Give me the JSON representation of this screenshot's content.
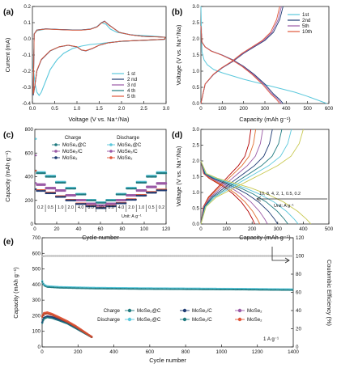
{
  "colors": {
    "c1": "#5bc8dc",
    "c2": "#1f3b73",
    "c3": "#9b5aa6",
    "c4": "#1f7a7f",
    "c5": "#e0573a"
  },
  "chart_data": [
    {
      "id": "a",
      "panel_label": "(a)",
      "type": "line",
      "xlabel": "Voltage (V vs. Na⁺/Na)",
      "ylabel": "Current (mA)",
      "xlim": [
        0,
        3.0
      ],
      "ylim": [
        -0.4,
        0.2
      ],
      "xticks": [
        "0.0",
        "0.5",
        "1.0",
        "1.5",
        "2.0",
        "2.5",
        "3.0"
      ],
      "yticks": [
        "-0.4",
        "-0.3",
        "-0.2",
        "-0.1",
        "0.0",
        "0.1",
        "0.2"
      ],
      "legend": [
        "1 st",
        "2 nd",
        "3 rd",
        "4 th",
        "5 th"
      ],
      "series": [
        {
          "name": "1 st",
          "x": [
            0.02,
            0.06,
            0.1,
            0.15,
            0.2,
            0.3,
            0.4,
            0.55,
            0.7,
            0.9,
            1.1,
            1.3,
            1.5,
            1.8,
            2.2,
            2.6,
            2.95,
            2.98,
            2.8,
            2.5,
            2.2,
            1.9,
            1.75,
            1.65,
            1.55,
            1.45,
            1.3,
            1.1,
            0.9,
            0.6,
            0.3,
            0.1,
            0.04,
            0.02
          ],
          "y": [
            -0.18,
            -0.28,
            -0.33,
            -0.35,
            -0.33,
            -0.26,
            -0.19,
            -0.13,
            -0.09,
            -0.06,
            -0.045,
            -0.035,
            -0.03,
            -0.02,
            -0.013,
            -0.009,
            -0.004,
            0.01,
            0.015,
            0.02,
            0.025,
            0.04,
            0.06,
            0.09,
            0.1,
            0.075,
            0.06,
            0.055,
            0.055,
            0.058,
            0.06,
            0.05,
            0.03,
            -0.18
          ]
        },
        {
          "name": "2 nd",
          "x": [
            0.02,
            0.05,
            0.1,
            0.2,
            0.4,
            0.6,
            0.8,
            1.0,
            1.1,
            1.2,
            1.35,
            1.5,
            1.7,
            2.0,
            2.4,
            2.8,
            2.97,
            2.98,
            2.8,
            2.5,
            2.2,
            1.95,
            1.8,
            1.7,
            1.62,
            1.55,
            1.45,
            1.3,
            1.1,
            0.9,
            0.6,
            0.3,
            0.1,
            0.04,
            0.02
          ],
          "y": [
            -0.35,
            -0.3,
            -0.2,
            -0.13,
            -0.075,
            -0.05,
            -0.04,
            -0.05,
            -0.07,
            -0.075,
            -0.06,
            -0.04,
            -0.025,
            -0.015,
            -0.01,
            -0.005,
            -0.003,
            0.01,
            0.012,
            0.015,
            0.025,
            0.04,
            0.07,
            0.09,
            0.11,
            0.1,
            0.075,
            0.06,
            0.055,
            0.055,
            0.058,
            0.062,
            0.055,
            0.03,
            -0.35
          ]
        }
      ]
    },
    {
      "id": "b",
      "panel_label": "(b)",
      "type": "line",
      "xlabel": "Capacity (mAh g⁻¹)",
      "ylabel": "Voltage (V vs. Na⁺/Na)",
      "xlim": [
        0,
        600
      ],
      "ylim": [
        0,
        3.0
      ],
      "xticks": [
        "0",
        "100",
        "200",
        "300",
        "400",
        "500",
        "600"
      ],
      "yticks": [
        "0.0",
        "0.5",
        "1.0",
        "1.5",
        "2.0",
        "2.5",
        "3.0"
      ],
      "legend": [
        "1st",
        "2nd",
        "5th",
        "10th"
      ],
      "series": [
        {
          "name": "1st",
          "dis_x": [
            0,
            5,
            15,
            30,
            60,
            100,
            150,
            200,
            260,
            320,
            380,
            440,
            500,
            550,
            590
          ],
          "dis_y": [
            3.0,
            1.6,
            1.35,
            1.2,
            1.05,
            0.95,
            0.85,
            0.75,
            0.65,
            0.55,
            0.45,
            0.35,
            0.22,
            0.1,
            0.0
          ]
        },
        {
          "name": "2nd",
          "dis_x": [
            0,
            5,
            20,
            50,
            100,
            150,
            200,
            250,
            300,
            340,
            370,
            385
          ],
          "dis_y": [
            2.4,
            1.9,
            1.75,
            1.62,
            1.5,
            1.35,
            1.15,
            0.9,
            0.6,
            0.3,
            0.12,
            0.0
          ],
          "ch_x": [
            0,
            20,
            60,
            100,
            150,
            200,
            250,
            300,
            340,
            370,
            385
          ],
          "ch_y": [
            0.0,
            0.6,
            0.9,
            1.1,
            1.3,
            1.55,
            1.75,
            1.95,
            2.2,
            2.6,
            3.0
          ]
        }
      ]
    },
    {
      "id": "c",
      "panel_label": "(c)",
      "type": "scatter",
      "xlabel": "Cycle number",
      "ylabel": "Capacity (mAh g⁻¹)",
      "xlim": [
        0,
        130
      ],
      "ylim": [
        0,
        800
      ],
      "xticks": [
        "0",
        "20",
        "40",
        "60",
        "80",
        "100",
        "120"
      ],
      "yticks": [
        "0",
        "200",
        "400",
        "600",
        "800"
      ],
      "legend_headers": [
        "Charge",
        "Discharge"
      ],
      "legend": [
        {
          "label": "MoSe₂@C",
          "col": "charge"
        },
        {
          "label": "MoSe₂@C",
          "col": "discharge"
        },
        {
          "label": "MoSe₂/C",
          "col": "charge"
        },
        {
          "label": "MoSe₂/C",
          "col": "discharge"
        },
        {
          "label": "MoSe₂",
          "col": "charge"
        },
        {
          "label": "MoSe₂",
          "col": "discharge"
        }
      ],
      "rate_labels": [
        "0.2",
        "0.5",
        "1.0",
        "2.0",
        "4.0",
        "8.0",
        "10",
        "8.0",
        "4.0",
        "2.0",
        "1.0",
        "0.5",
        "0.2"
      ],
      "unit_label": "Unit: A g⁻¹",
      "series": [
        {
          "name": "MoSe₂@C",
          "steps": [
            430,
            400,
            350,
            300,
            250,
            200,
            180,
            200,
            250,
            300,
            350,
            400,
            430
          ],
          "first": 720
        },
        {
          "name": "MoSe₂/C",
          "steps": [
            330,
            300,
            280,
            240,
            200,
            170,
            155,
            170,
            200,
            240,
            280,
            310,
            340
          ],
          "first": 580
        },
        {
          "name": "MoSe₂",
          "steps": [
            280,
            260,
            230,
            200,
            170,
            150,
            135,
            150,
            175,
            205,
            240,
            265,
            285
          ],
          "first": 450
        }
      ]
    },
    {
      "id": "d",
      "panel_label": "(d)",
      "type": "line",
      "xlabel": "Capacity (mAh g⁻¹)",
      "ylabel": "Voltage (V vs. Na⁺/Na)",
      "xlim": [
        0,
        500
      ],
      "ylim": [
        0,
        3.0
      ],
      "xticks": [
        "0",
        "100",
        "200",
        "300",
        "400",
        "500"
      ],
      "yticks": [
        "0.0",
        "0.5",
        "1.0",
        "1.5",
        "2.0",
        "2.5",
        "3.0"
      ],
      "rates_label": "10, 8, 4, 2, 1, 0.5, 0.2",
      "unit_label": "Unit: A g⁻¹",
      "curve_caps": [
        210,
        230,
        260,
        300,
        340,
        380,
        430
      ]
    },
    {
      "id": "e",
      "panel_label": "(e)",
      "type": "scatter",
      "xlabel": "Cycle number",
      "ylabel": "Capacity (mAh g⁻¹)",
      "y2label": "Coulombic Efficiency (%)",
      "xlim": [
        0,
        1500
      ],
      "ylim": [
        0,
        700
      ],
      "y2lim": [
        0,
        120
      ],
      "xticks": [
        "0",
        "200",
        "400",
        "600",
        "800",
        "1000",
        "1200",
        "1400"
      ],
      "yticks": [
        "0",
        "100",
        "200",
        "300",
        "400",
        "500",
        "600",
        "700"
      ],
      "y2ticks": [
        "0",
        "20",
        "40",
        "60",
        "80",
        "100",
        "120"
      ],
      "legend_rows": [
        "Charge",
        "Discharge"
      ],
      "legend": [
        "MoSe₂@C",
        "MoSe₂/C",
        "MoSe₂"
      ],
      "annotation": "1 A g⁻¹",
      "series": [
        {
          "name": "MoSe₂@C capacity",
          "x": [
            0,
            10,
            30,
            100,
            300,
            600,
            900,
            1200,
            1500
          ],
          "y": [
            420,
            395,
            385,
            380,
            375,
            372,
            370,
            368,
            365
          ]
        },
        {
          "name": "Coulombic efficiency",
          "x": [
            0,
            20,
            200,
            700,
            1500
          ],
          "y": [
            99.5,
            100,
            100,
            100,
            100
          ]
        },
        {
          "name": "MoSe₂/C",
          "x": [
            0,
            10,
            30,
            60,
            100,
            150,
            200,
            250,
            300
          ],
          "y": [
            150,
            180,
            190,
            185,
            170,
            150,
            120,
            90,
            60
          ]
        },
        {
          "name": "MoSe₂",
          "x": [
            0,
            10,
            30,
            60,
            100,
            150,
            200,
            250,
            300
          ],
          "y": [
            190,
            210,
            215,
            205,
            185,
            160,
            130,
            95,
            60
          ]
        }
      ]
    }
  ]
}
